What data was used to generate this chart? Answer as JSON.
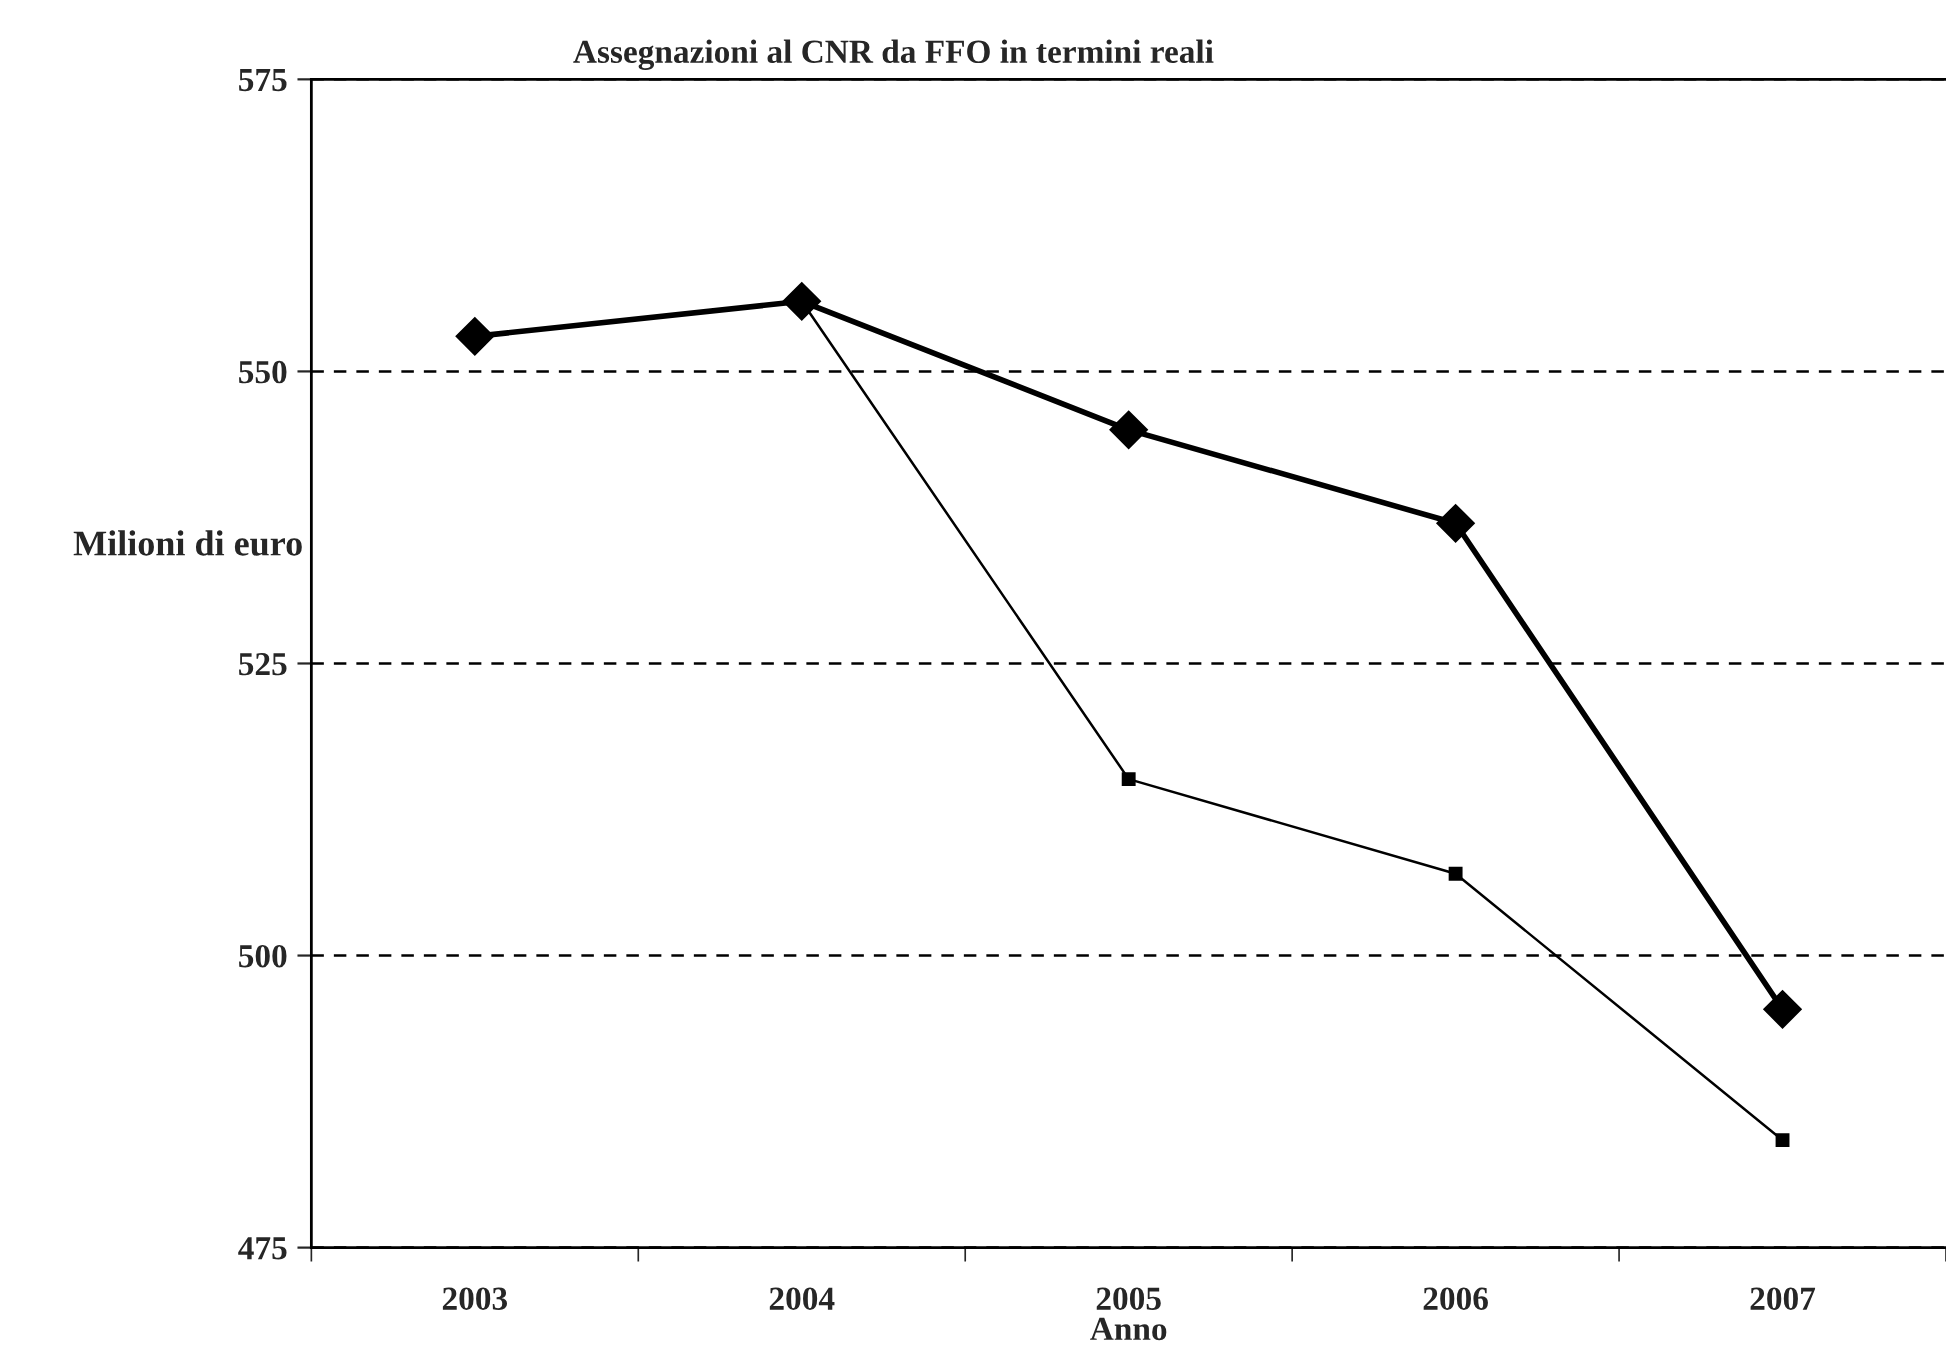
{
  "chart_data": {
    "type": "line",
    "title": "Assegnazioni al CNR da FFO in termini reali",
    "xlabel": "Anno",
    "ylabel": "Milioni di euro",
    "categories": [
      "2003",
      "2004",
      "2005",
      "2006",
      "2007"
    ],
    "series": [
      {
        "color": "#000000",
        "marker": "diamond",
        "values": [
          553,
          556,
          545,
          537,
          495.4
        ]
      },
      {
        "color": "#000000",
        "marker": "square",
        "values": [
          null,
          556,
          515.1,
          507,
          484.2
        ]
      }
    ],
    "ylim": [
      475,
      575
    ],
    "yticks": [
      475,
      500,
      525,
      550,
      575
    ],
    "grid": "y",
    "legend": false
  }
}
